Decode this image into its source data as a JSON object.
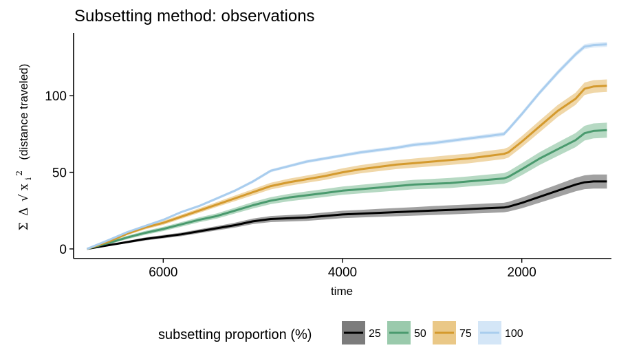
{
  "chart_data": {
    "type": "line",
    "title": "Subsetting method: observations",
    "xlabel": "time",
    "ylabel_math": {
      "sigma": "Σ",
      "delta": "Δ",
      "root": "√",
      "var": "x",
      "subscript": "i",
      "superscript": "2"
    },
    "ylabel": "(distance traveled)",
    "x_reversed": true,
    "xlim": [
      6900,
      1000
    ],
    "ylim": [
      0,
      140
    ],
    "x_ticks": [
      6000,
      4000,
      2000
    ],
    "y_ticks": [
      0,
      50,
      100
    ],
    "grid": false,
    "legend": {
      "title": "subsetting proportion (%)",
      "position": "bottom",
      "entries": [
        "25",
        "50",
        "75",
        "100"
      ]
    },
    "x": [
      6850,
      6600,
      6400,
      6200,
      6000,
      5800,
      5600,
      5400,
      5200,
      5000,
      4800,
      4600,
      4400,
      4200,
      4000,
      3800,
      3600,
      3400,
      3200,
      3000,
      2800,
      2600,
      2400,
      2200,
      2150,
      2000,
      1800,
      1600,
      1400,
      1300,
      1200,
      1050
    ],
    "series": [
      {
        "name": "25",
        "color": "#000000",
        "band_color": "#6e6e6e",
        "values": [
          0,
          2.5,
          4.5,
          6.5,
          8,
          9.5,
          11.5,
          13.5,
          15.5,
          18,
          19.5,
          20,
          20.5,
          21.5,
          22.5,
          23,
          23.5,
          24,
          24.5,
          25,
          25.5,
          26,
          26.5,
          27,
          27.5,
          30,
          34,
          38,
          42,
          43.5,
          44,
          44
        ],
        "band": [
          0.3,
          0.6,
          0.8,
          1.0,
          1.1,
          1.2,
          1.3,
          1.4,
          1.6,
          1.8,
          2.0,
          2.1,
          2.2,
          2.3,
          2.4,
          2.5,
          2.6,
          2.7,
          2.8,
          2.9,
          3.0,
          3.0,
          3.1,
          3.1,
          3.2,
          3.5,
          3.8,
          4.1,
          4.4,
          4.5,
          4.6,
          4.6
        ]
      },
      {
        "name": "50",
        "color": "#4a9a6e",
        "band_color": "#8fc4a3",
        "values": [
          0,
          4,
          7.5,
          10.5,
          13,
          16,
          19,
          21.5,
          25,
          28.5,
          31.5,
          33.5,
          35,
          36.5,
          38,
          39,
          40,
          41,
          42,
          42.5,
          43,
          44,
          45,
          46,
          47,
          52,
          59,
          65,
          71,
          75.5,
          77,
          77.5
        ],
        "band": [
          0.4,
          0.8,
          1.1,
          1.3,
          1.4,
          1.5,
          1.6,
          1.7,
          1.9,
          2.1,
          2.3,
          2.4,
          2.5,
          2.6,
          2.7,
          2.8,
          2.9,
          3.0,
          3.1,
          3.2,
          3.3,
          3.3,
          3.4,
          3.5,
          3.6,
          3.9,
          4.2,
          4.4,
          4.6,
          4.8,
          4.9,
          4.9
        ]
      },
      {
        "name": "75",
        "color": "#d49a2e",
        "band_color": "#e8c27a",
        "values": [
          0,
          5,
          10,
          14,
          17,
          21,
          25,
          29,
          33,
          37,
          41,
          43.5,
          45.5,
          47.5,
          50,
          52,
          53.5,
          55,
          56,
          57,
          58,
          59,
          60.5,
          62,
          63,
          70,
          80,
          90,
          98,
          104.5,
          106,
          106.5
        ],
        "band": [
          0.4,
          0.8,
          1.0,
          1.2,
          1.3,
          1.4,
          1.5,
          1.6,
          1.8,
          2.0,
          2.2,
          2.3,
          2.4,
          2.5,
          2.6,
          2.7,
          2.8,
          2.9,
          3.0,
          3.1,
          3.2,
          3.2,
          3.3,
          3.3,
          3.4,
          3.6,
          3.8,
          3.9,
          4.0,
          4.1,
          4.1,
          4.1
        ]
      },
      {
        "name": "100",
        "color": "#a9cdee",
        "band_color": "#cfe3f6",
        "values": [
          0,
          6,
          11,
          15,
          19,
          24,
          28,
          33,
          38,
          44,
          51,
          54,
          57,
          59,
          61,
          63,
          64.5,
          66,
          68,
          69,
          70.5,
          72,
          73.5,
          75,
          78,
          88,
          102,
          115,
          127,
          132,
          133,
          133.5
        ],
        "band": [
          0.3,
          0.5,
          0.6,
          0.7,
          0.7,
          0.8,
          0.8,
          0.9,
          0.9,
          1.0,
          1.0,
          1.0,
          1.1,
          1.1,
          1.1,
          1.2,
          1.2,
          1.2,
          1.3,
          1.3,
          1.3,
          1.3,
          1.4,
          1.4,
          1.4,
          1.5,
          1.5,
          1.6,
          1.6,
          1.6,
          1.6,
          1.6
        ]
      }
    ]
  }
}
